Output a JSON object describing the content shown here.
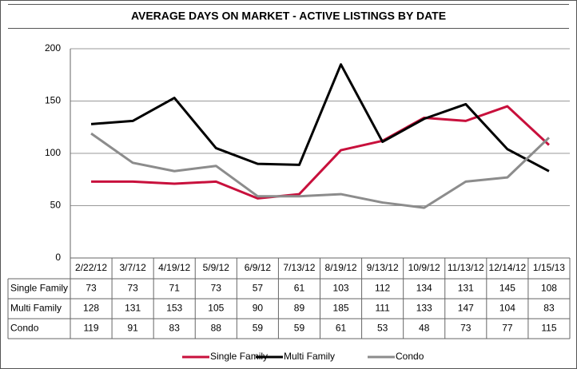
{
  "chart_data": {
    "type": "line",
    "title": "AVERAGE DAYS ON MARKET - ACTIVE LISTINGS BY DATE",
    "categories": [
      "2/22/12",
      "3/7/12",
      "4/19/12",
      "5/9/12",
      "6/9/12",
      "7/13/12",
      "8/19/12",
      "9/13/12",
      "10/9/12",
      "11/13/12",
      "12/14/12",
      "1/15/13"
    ],
    "series": [
      {
        "name": "Single Family",
        "color": "#c8103c",
        "values": [
          73,
          73,
          71,
          73,
          57,
          61,
          103,
          112,
          134,
          131,
          145,
          108
        ]
      },
      {
        "name": "Multi Family",
        "color": "#000000",
        "values": [
          128,
          131,
          153,
          105,
          90,
          89,
          185,
          111,
          133,
          147,
          104,
          83
        ]
      },
      {
        "name": "Condo",
        "color": "#8c8c8c",
        "values": [
          119,
          91,
          83,
          88,
          59,
          59,
          61,
          53,
          48,
          73,
          77,
          115
        ]
      }
    ],
    "ylim": [
      0,
      200
    ],
    "yticks": [
      0,
      50,
      100,
      150,
      200
    ],
    "grid": true
  }
}
